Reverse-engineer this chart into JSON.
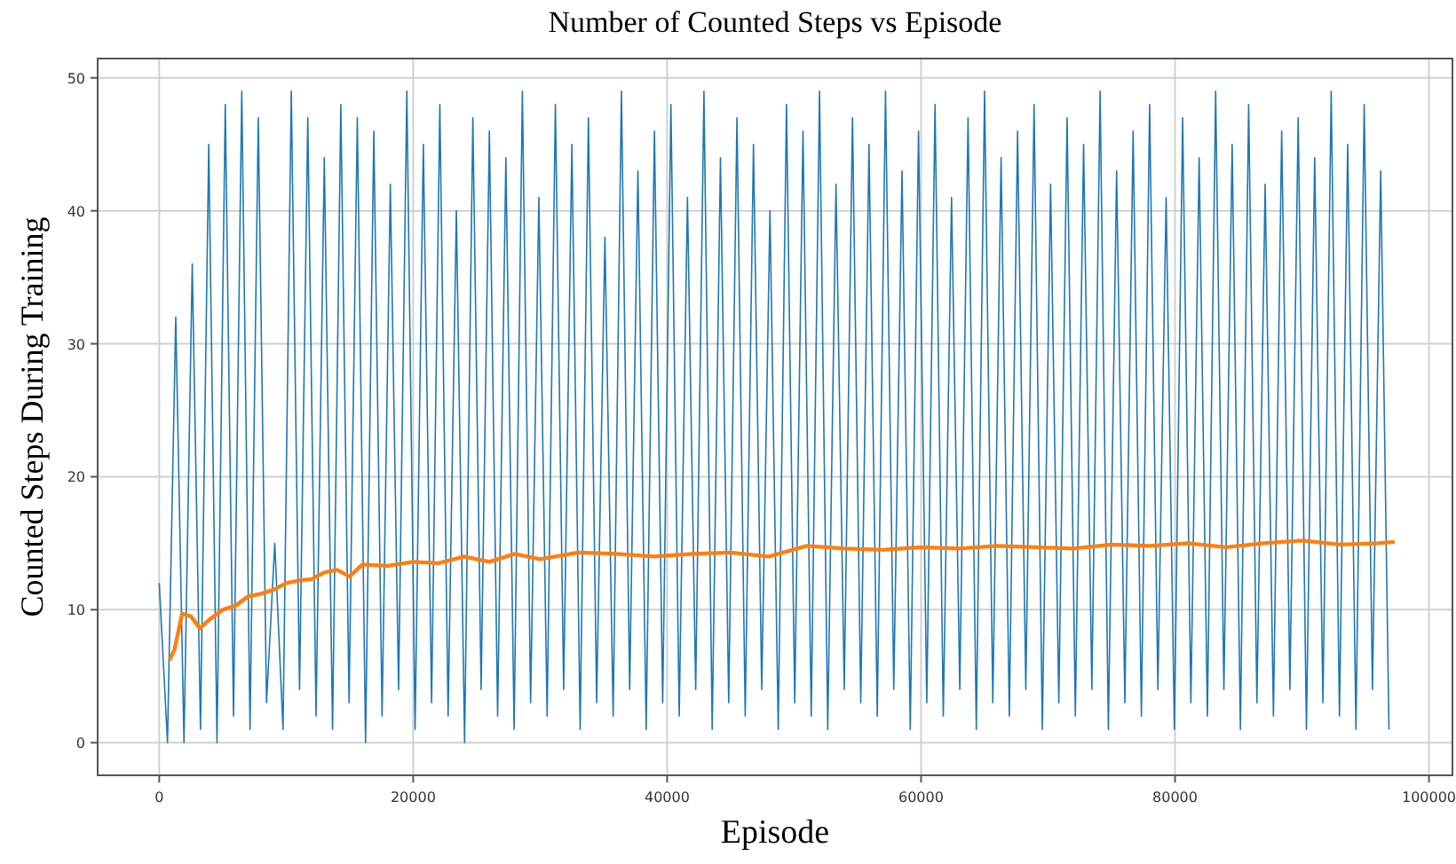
{
  "chart_data": {
    "type": "line",
    "title": "Number of Counted Steps vs Episode",
    "xlabel": "Episode",
    "ylabel": "Counted Steps During Training",
    "xlim": [
      -4850,
      101850
    ],
    "ylim": [
      -2.45,
      51.45
    ],
    "xticks": [
      0,
      20000,
      40000,
      60000,
      80000,
      100000
    ],
    "yticks": [
      0,
      10,
      20,
      30,
      40,
      50
    ],
    "grid": true,
    "series": [
      {
        "color": "#1f77b4",
        "x": [
          0,
          650,
          1300,
          1950,
          2600,
          3250,
          3900,
          4550,
          5200,
          5850,
          6500,
          7150,
          7800,
          8450,
          9100,
          9750,
          10400,
          11050,
          11700,
          12350,
          13000,
          13650,
          14300,
          14950,
          15600,
          16250,
          16900,
          17550,
          18200,
          18850,
          19500,
          20150,
          20800,
          21450,
          22100,
          22750,
          23400,
          24050,
          24700,
          25350,
          26000,
          26650,
          27300,
          27950,
          28600,
          29250,
          29900,
          30550,
          31200,
          31850,
          32500,
          33150,
          33800,
          34450,
          35100,
          35750,
          36400,
          37050,
          37700,
          38350,
          39000,
          39650,
          40300,
          40950,
          41600,
          42250,
          42900,
          43550,
          44200,
          44850,
          45500,
          46150,
          46800,
          47450,
          48100,
          48750,
          49400,
          50050,
          50700,
          51350,
          52000,
          52650,
          53300,
          53950,
          54600,
          55250,
          55900,
          56550,
          57200,
          57850,
          58500,
          59150,
          59800,
          60450,
          61100,
          61750,
          62400,
          63050,
          63700,
          64350,
          65000,
          65650,
          66300,
          66950,
          67600,
          68250,
          68900,
          69550,
          70200,
          70850,
          71500,
          72150,
          72800,
          73450,
          74100,
          74750,
          75400,
          76050,
          76700,
          77350,
          78000,
          78650,
          79300,
          79950,
          80600,
          81250,
          81900,
          82550,
          83200,
          83850,
          84500,
          85150,
          85800,
          86450,
          87100,
          87750,
          88400,
          89050,
          89700,
          90350,
          91000,
          91650,
          92300,
          92950,
          93600,
          94250,
          94900,
          95550,
          96200,
          96850
        ],
        "values": [
          12,
          0,
          32,
          0,
          36,
          1,
          45,
          0,
          48,
          2,
          49,
          1,
          47,
          3,
          15,
          1,
          49,
          4,
          47,
          2,
          44,
          1,
          48,
          3,
          47,
          0,
          46,
          2,
          42,
          4,
          49,
          1,
          45,
          3,
          48,
          2,
          40,
          0,
          47,
          4,
          46,
          2,
          44,
          1,
          49,
          3,
          41,
          2,
          48,
          4,
          45,
          1,
          47,
          3,
          38,
          2,
          49,
          4,
          43,
          1,
          46,
          3,
          48,
          2,
          41,
          4,
          49,
          1,
          44,
          3,
          47,
          2,
          45,
          4,
          40,
          1,
          48,
          3,
          46,
          2,
          49,
          1,
          42,
          4,
          47,
          3,
          45,
          2,
          49,
          4,
          43,
          1,
          46,
          3,
          48,
          2,
          41,
          4,
          47,
          1,
          49,
          3,
          44,
          2,
          46,
          4,
          48,
          1,
          42,
          3,
          47,
          2,
          45,
          4,
          49,
          1,
          43,
          3,
          46,
          2,
          48,
          4,
          41,
          1,
          47,
          3,
          44,
          2,
          49,
          4,
          45,
          1,
          48,
          3,
          42,
          2,
          46,
          4,
          47,
          1,
          44,
          3,
          49,
          2,
          45,
          1,
          48,
          4,
          43,
          1
        ]
      },
      {
        "color": "#ff7f0e",
        "x": [
          800,
          1200,
          1800,
          2500,
          3200,
          4000,
          5000,
          6000,
          7000,
          8000,
          9000,
          10000,
          11000,
          12000,
          13000,
          14000,
          15000,
          16000,
          18000,
          20000,
          22000,
          24000,
          26000,
          28000,
          30000,
          33000,
          36000,
          39000,
          42000,
          45000,
          48000,
          51000,
          54000,
          57000,
          60000,
          63000,
          66000,
          69000,
          72000,
          75000,
          78000,
          81000,
          84000,
          87000,
          90000,
          93000,
          96000,
          97300
        ],
        "values": [
          6.2,
          7,
          9.7,
          9.5,
          8.6,
          9.3,
          10,
          10.3,
          11,
          11.2,
          11.5,
          12,
          12.2,
          12.3,
          12.8,
          13,
          12.5,
          13.4,
          13.3,
          13.6,
          13.5,
          14,
          13.6,
          14.2,
          13.8,
          14.3,
          14.2,
          14,
          14.2,
          14.3,
          14,
          14.8,
          14.6,
          14.5,
          14.7,
          14.6,
          14.8,
          14.7,
          14.6,
          14.9,
          14.8,
          15,
          14.7,
          15,
          15.2,
          14.9,
          15,
          15.1
        ]
      }
    ]
  }
}
